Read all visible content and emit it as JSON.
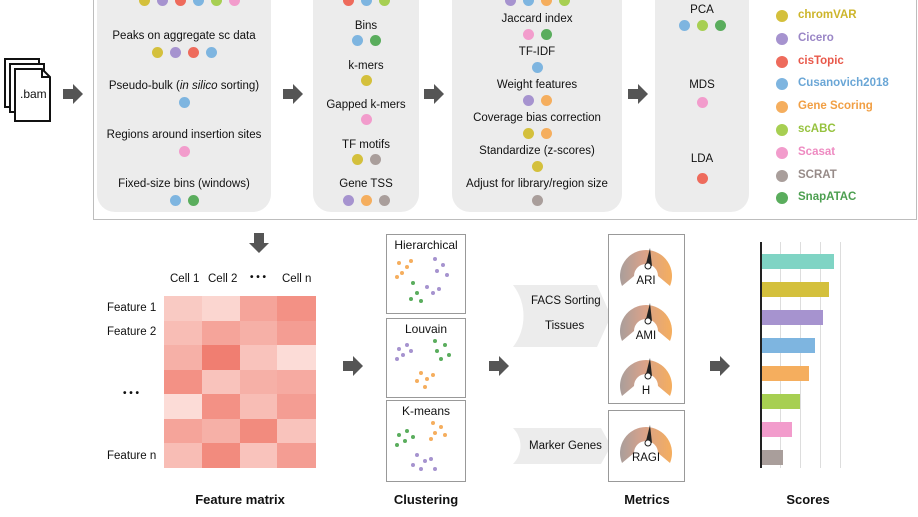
{
  "input_file": ".bam",
  "columns": {
    "regions": {
      "items": [
        {
          "label_pre": "Peaks on aggregate sc data",
          "label_em": "",
          "label_post": "",
          "dots": [
            "chromVAR",
            "Cicero",
            "cisTopic",
            "Cusanovich2018"
          ]
        },
        {
          "label_pre": "Pseudo-bulk (",
          "label_em": "in silico",
          "label_post": " sorting)",
          "dots": [
            "Cusanovich2018"
          ]
        },
        {
          "label_pre": "Regions around insertion sites",
          "label_em": "",
          "label_post": "",
          "dots": [
            "Scasat"
          ]
        },
        {
          "label_pre": "Fixed-size bins (windows)",
          "label_em": "",
          "label_post": "",
          "dots": [
            "Cusanovich2018",
            "SnapATAC"
          ]
        }
      ]
    },
    "features": {
      "items": [
        {
          "label": "Bins",
          "dots": [
            "Cusanovich2018",
            "SnapATAC"
          ]
        },
        {
          "label": "k-mers",
          "dots": [
            "chromVAR"
          ]
        },
        {
          "label": "Gapped k-mers",
          "dots": [
            "Scasat"
          ]
        },
        {
          "label": "TF motifs",
          "dots": [
            "chromVAR",
            "SCRAT"
          ]
        },
        {
          "label": "Gene TSS",
          "dots": [
            "Cicero",
            "Gene Scoring",
            "SCRAT"
          ]
        }
      ]
    },
    "transforms": {
      "items": [
        {
          "label": "Jaccard index",
          "dots": [
            "Scasat",
            "SnapATAC"
          ]
        },
        {
          "label": "TF-IDF",
          "dots": [
            "Cusanovich2018"
          ]
        },
        {
          "label": "Weight features",
          "dots": [
            "Cicero",
            "Gene Scoring"
          ]
        },
        {
          "label": "Coverage bias correction",
          "dots": [
            "chromVAR",
            "Gene Scoring"
          ]
        },
        {
          "label": "Standardize (z-scores)",
          "dots": [
            "chromVAR"
          ]
        },
        {
          "label": "Adjust for library/region size",
          "dots": [
            "SCRAT"
          ]
        }
      ]
    },
    "reduction": {
      "items": [
        {
          "label": "PCA",
          "dots": [
            "Cusanovich2018",
            "scABC",
            "SnapATAC"
          ]
        },
        {
          "label": "MDS",
          "dots": [
            "Scasat"
          ]
        },
        {
          "label": "LDA",
          "dots": [
            "cisTopic"
          ]
        }
      ]
    }
  },
  "legend": [
    {
      "name": "chromVAR",
      "color": "#d4c03c",
      "text_color": "#cdb52a"
    },
    {
      "name": "Cicero",
      "color": "#a693cf",
      "text_color": "#9a86c6"
    },
    {
      "name": "cisTopic",
      "color": "#ee6b5c",
      "text_color": "#e8584a"
    },
    {
      "name": "Cusanovich2018",
      "color": "#7eb5e0",
      "text_color": "#6aa6d6"
    },
    {
      "name": "Gene Scoring",
      "color": "#f5ae5e",
      "text_color": "#f19f44"
    },
    {
      "name": "scABC",
      "color": "#a7cf52",
      "text_color": "#96c23e"
    },
    {
      "name": "Scasat",
      "color": "#f29ccc",
      "text_color": "#ee8ac1"
    },
    {
      "name": "SCRAT",
      "color": "#a99e9b",
      "text_color": "#978b88"
    },
    {
      "name": "SnapATAC",
      "color": "#5aad5d",
      "text_color": "#4c9f50"
    }
  ],
  "feature_matrix": {
    "caption": "Feature matrix",
    "col_labels": [
      "Cell 1",
      "Cell 2",
      "• • •",
      "Cell n"
    ],
    "row_labels": [
      "Feature 1",
      "Feature 2",
      "• • •",
      "Feature n"
    ],
    "levels": [
      [
        0.25,
        0.15,
        0.55,
        0.7
      ],
      [
        0.35,
        0.55,
        0.45,
        0.6
      ],
      [
        0.45,
        0.85,
        0.3,
        0.1
      ],
      [
        0.7,
        0.3,
        0.45,
        0.5
      ],
      [
        0.1,
        0.7,
        0.35,
        0.6
      ],
      [
        0.55,
        0.45,
        0.75,
        0.3
      ],
      [
        0.35,
        0.75,
        0.3,
        0.6
      ]
    ],
    "color": "#ee6b5c"
  },
  "clustering": {
    "caption": "Clustering",
    "methods": [
      "Hierarchical",
      "Louvain",
      "K-means"
    ]
  },
  "metrics": {
    "caption": "Metrics",
    "groups": [
      {
        "label_lines": [
          "FACS Sorting",
          "Tissues"
        ],
        "gauges": [
          "ARI",
          "AMI",
          "H"
        ]
      },
      {
        "label_lines": [
          "Marker Genes"
        ],
        "gauges": [
          "RAGI"
        ]
      }
    ]
  },
  "scores": {
    "caption": "Scores",
    "values": [
      0.95,
      0.88,
      0.8,
      0.7,
      0.62,
      0.5,
      0.4,
      0.28
    ]
  }
}
